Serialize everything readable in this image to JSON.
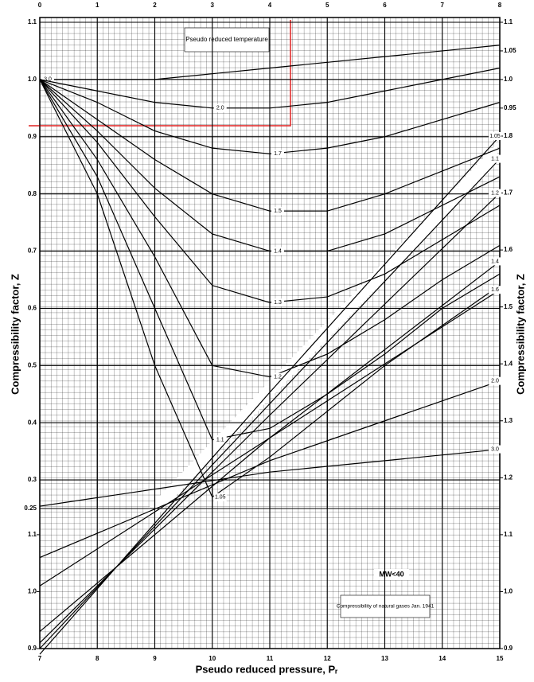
{
  "chart_data": [
    {
      "type": "line",
      "xlabel": "Pseudo reduced pressure, Pᵣ",
      "ylabel": "Compressibility factor, Z",
      "annotation": "Pseudo reduced temperature",
      "x": [
        0,
        1,
        2,
        3,
        4,
        5,
        6,
        7,
        8
      ],
      "xlim": [
        0,
        8
      ],
      "xticks": [
        0,
        1,
        2,
        3,
        4,
        5,
        6,
        7,
        8
      ],
      "ylim": [
        0.25,
        1.1
      ],
      "yticks": [
        0.25,
        0.3,
        0.4,
        0.5,
        0.6,
        0.7,
        0.8,
        0.9,
        {
          "value": 1,
          "label": "1.0"
        },
        1.1
      ],
      "y2lim": [
        0.25,
        1.1
      ],
      "y2ticks": [
        0.95,
        {
          "value": 1,
          "label": "1.0"
        },
        1.05,
        1.1
      ],
      "grid": true,
      "series": [
        {
          "name": "3.0",
          "color": "#000000",
          "values": [
            1,
            1.0,
            1.0,
            1.01,
            1.02,
            1.03,
            1.04,
            1.05,
            1.06
          ]
        },
        {
          "name": "2.0",
          "color": "#000000",
          "values": [
            1,
            0.98,
            0.96,
            0.95,
            0.95,
            0.96,
            0.98,
            1.0,
            1.02
          ]
        },
        {
          "name": "1.7",
          "color": "#000000",
          "values": [
            1,
            0.96,
            0.91,
            0.88,
            0.87,
            0.88,
            0.9,
            0.93,
            0.96
          ]
        },
        {
          "name": "1.5",
          "color": "#000000",
          "values": [
            1,
            0.93,
            0.86,
            0.8,
            0.77,
            0.77,
            0.8,
            0.84,
            0.88
          ]
        },
        {
          "name": "1.4",
          "color": "#000000",
          "values": [
            1,
            0.91,
            0.81,
            0.73,
            0.7,
            0.7,
            0.73,
            0.78,
            0.83
          ]
        },
        {
          "name": "1.3",
          "color": "#000000",
          "values": [
            1,
            0.89,
            0.76,
            0.64,
            0.61,
            0.62,
            0.66,
            0.72,
            0.78
          ]
        },
        {
          "name": "1.2",
          "color": "#000000",
          "values": [
            1,
            0.86,
            0.69,
            0.5,
            0.48,
            0.52,
            0.58,
            0.65,
            0.71
          ]
        },
        {
          "name": "1.1",
          "color": "#000000",
          "values": [
            1,
            0.83,
            0.6,
            0.37,
            0.39,
            0.45,
            0.52,
            0.6,
            0.66
          ]
        },
        {
          "name": "1.05",
          "color": "#000000",
          "values": [
            1,
            0.8,
            0.5,
            0.27,
            0.34,
            0.42,
            0.5,
            0.57,
            0.64
          ]
        }
      ]
    },
    {
      "type": "line",
      "annotations": [
        "MW<40",
        "Compressibility of natural gases Jan. 1941"
      ],
      "x": [
        7,
        11,
        15
      ],
      "xlim": [
        7,
        15
      ],
      "xticks": [
        7,
        8,
        9,
        10,
        11,
        12,
        13,
        14,
        15
      ],
      "ylim": [
        0.9,
        1.8
      ],
      "yticks": [
        0.9,
        {
          "value": 1,
          "label": "1.0"
        },
        1.1
      ],
      "y2lim": [
        0.9,
        1.8
      ],
      "y2ticks": [
        0.9,
        {
          "value": 1,
          "label": "1.0"
        },
        1.1,
        1.2,
        1.3,
        1.4,
        1.5,
        1.6,
        1.7,
        1.8
      ],
      "series": [
        {
          "name": "1.05",
          "color": "#000000",
          "values": [
            0.89,
            1.35,
            1.8
          ]
        },
        {
          "name": "1.1",
          "color": "#000000",
          "values": [
            0.9,
            1.33,
            1.76
          ]
        },
        {
          "name": "1.2",
          "color": "#000000",
          "values": [
            0.91,
            1.31,
            1.7
          ]
        },
        {
          "name": "1.4",
          "color": "#000000",
          "values": [
            0.93,
            1.27,
            1.58
          ]
        },
        {
          "name": "1.6",
          "color": "#000000",
          "values": [
            1.01,
            1.27,
            1.53
          ]
        },
        {
          "name": "2.0",
          "color": "#000000",
          "values": [
            1.06,
            1.23,
            1.37
          ]
        },
        {
          "name": "3.0",
          "color": "#000000",
          "values": [
            1.15,
            1.21,
            1.25
          ]
        }
      ]
    }
  ]
}
